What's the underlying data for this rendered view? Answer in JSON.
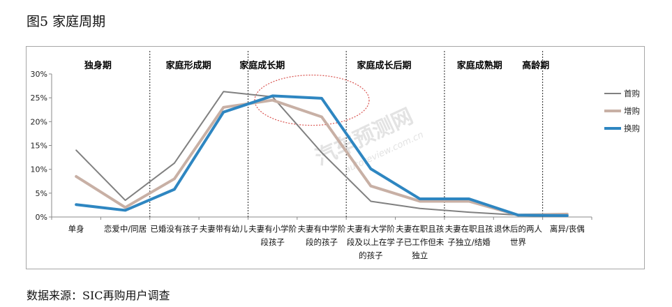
{
  "figure_title": "图5 家庭周期",
  "source_note": "数据来源：SIC再购用户调查",
  "watermark": {
    "name": "汽车预测网",
    "url": "autoreview.com.cn"
  },
  "chart_data": {
    "type": "line",
    "title": "",
    "xlabel": "",
    "ylabel": "",
    "ylim": [
      0,
      0.3
    ],
    "y_ticks": [
      "0%",
      "5%",
      "10%",
      "15%",
      "20%",
      "25%",
      "30%"
    ],
    "stages": [
      "独身期",
      "家庭形成期",
      "家庭成长期",
      "家庭成长后期",
      "家庭成熟期",
      "高龄期"
    ],
    "categories": [
      [
        "单身"
      ],
      [
        "恋爱中/同居"
      ],
      [
        "已婚没有孩子"
      ],
      [
        "夫妻带有幼儿"
      ],
      [
        "夫妻有小学阶",
        "段孩子"
      ],
      [
        "夫妻有中学阶",
        "段的孩子"
      ],
      [
        "夫妻有大学阶",
        "段及以上在学",
        "的孩子"
      ],
      [
        "夫妻在职且孩",
        "子已工作但未",
        "独立"
      ],
      [
        "夫妻在职且孩",
        "子独立/结婚"
      ],
      [
        "退休后的两人",
        "世界"
      ],
      [
        "离异/丧偶"
      ]
    ],
    "series": [
      {
        "name": "首购",
        "color": "#808080",
        "width": 2,
        "values": [
          0.14,
          0.035,
          0.113,
          0.263,
          0.252,
          0.135,
          0.033,
          0.018,
          0.01,
          0.004,
          0.006
        ]
      },
      {
        "name": "增购",
        "color": "#c8b0a5",
        "width": 4,
        "values": [
          0.085,
          0.02,
          0.08,
          0.23,
          0.245,
          0.21,
          0.065,
          0.033,
          0.033,
          0.004,
          0.006
        ]
      },
      {
        "name": "换购",
        "color": "#2e86c1",
        "width": 4,
        "values": [
          0.026,
          0.014,
          0.058,
          0.22,
          0.254,
          0.249,
          0.101,
          0.038,
          0.038,
          0.004,
          0.003
        ]
      }
    ],
    "legend_position": "right",
    "grid": false,
    "highlight": "dotted red ellipse around the peak"
  }
}
